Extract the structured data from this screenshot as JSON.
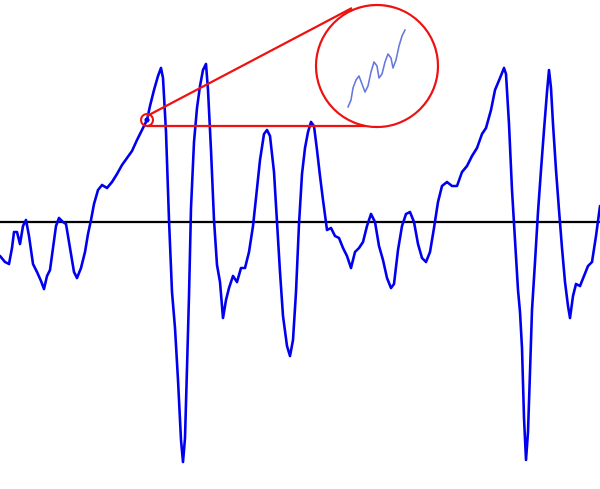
{
  "colors": {
    "background": "#ffffff",
    "signal": "#0000ee",
    "baseline": "#000000",
    "magnifier": "#ee1111",
    "zoomed_signal": "#6677dd"
  },
  "elements": {
    "signal": "waveform-trace",
    "baseline": "zero-axis-line",
    "focus_point": "zoom-target-circle",
    "magnifier": "zoom-callout-circle"
  }
}
